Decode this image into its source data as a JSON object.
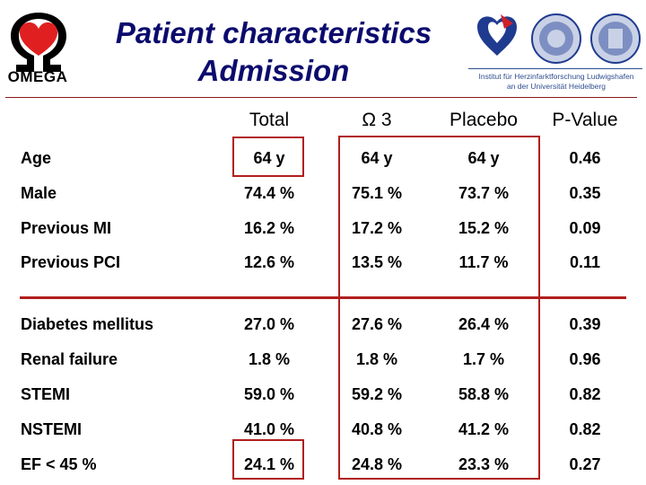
{
  "header": {
    "logo_text": "OMEGA",
    "title_line1": "Patient characteristics",
    "title_line2": "Admission",
    "institute_line1": "Institut für Herzinfarktforschung Ludwigshafen",
    "institute_line2": "an der Universität Heidelberg"
  },
  "colors": {
    "title": "#0b0b6e",
    "accent_red": "#b01e1e",
    "heart": "#e02020",
    "institute_blue": "#2f4f8f"
  },
  "table": {
    "columns": [
      "Total",
      "Ω 3",
      "Placebo",
      "P-Value"
    ],
    "rows": [
      {
        "label": "Age",
        "values": [
          "64 y",
          "64 y",
          "64 y",
          "0.46"
        ]
      },
      {
        "label": "Male",
        "values": [
          "74.4 %",
          "75.1 %",
          "73.7 %",
          "0.35"
        ]
      },
      {
        "label": "Previous MI",
        "values": [
          "16.2 %",
          "17.2 %",
          "15.2 %",
          "0.09"
        ]
      },
      {
        "label": "Previous PCI",
        "values": [
          "12.6 %",
          "13.5 %",
          "11.7 %",
          "0.11"
        ]
      },
      {
        "label": "Diabetes mellitus",
        "values": [
          "27.0 %",
          "27.6 %",
          "26.4 %",
          "0.39"
        ]
      },
      {
        "label": "Renal failure",
        "values": [
          "1.8 %",
          "1.8 %",
          "1.7 %",
          "0.96"
        ]
      },
      {
        "label": "STEMI",
        "values": [
          "59.0 %",
          "59.2 %",
          "58.8 %",
          "0.82"
        ]
      },
      {
        "label": "NSTEMI",
        "values": [
          "41.0 %",
          "40.8 %",
          "41.2 %",
          "0.82"
        ]
      },
      {
        "label": "EF < 45 %",
        "values": [
          "24.1 %",
          "24.8 %",
          "23.3 %",
          "0.27"
        ]
      }
    ]
  }
}
